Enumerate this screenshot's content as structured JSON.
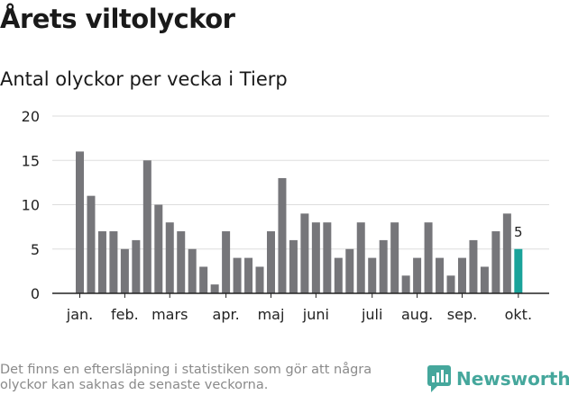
{
  "title": "Årets viltolyckor",
  "subtitle": "Antal olyckor per vecka i Tierp",
  "footnote": "Det finns en eftersläpning i statistiken som gör att några olyckor kan saknas de senaste veckorna.",
  "brand": "Newsworthy",
  "colors": {
    "bar": "#76767a",
    "highlight": "#1aa39a",
    "grid": "#dddddd",
    "axis": "#222222",
    "brand": "#45a79c"
  },
  "chart_data": {
    "type": "bar",
    "title": "Antal olyckor per vecka i Tierp",
    "xlabel": "",
    "ylabel": "",
    "ylim": [
      0,
      20
    ],
    "yticks": [
      0,
      5,
      10,
      15,
      20
    ],
    "grid": true,
    "weeks": [
      1,
      2,
      3,
      4,
      5,
      6,
      7,
      8,
      9,
      10,
      11,
      12,
      13,
      14,
      15,
      16,
      17,
      18,
      19,
      20,
      21,
      22,
      23,
      24,
      25,
      26,
      27,
      28,
      29,
      30,
      31,
      32,
      33,
      34,
      35,
      36,
      37,
      38,
      39,
      40
    ],
    "values": [
      16,
      11,
      7,
      7,
      5,
      6,
      15,
      10,
      8,
      7,
      5,
      3,
      1,
      7,
      4,
      4,
      3,
      7,
      13,
      6,
      9,
      8,
      8,
      4,
      5,
      8,
      4,
      6,
      8,
      2,
      4,
      8,
      4,
      2,
      4,
      6,
      3,
      7,
      9,
      5
    ],
    "highlight_index": 39,
    "highlight_label": "5",
    "month_labels": [
      {
        "label": "jan.",
        "week": 1
      },
      {
        "label": "feb.",
        "week": 5
      },
      {
        "label": "mars",
        "week": 9
      },
      {
        "label": "apr.",
        "week": 14
      },
      {
        "label": "maj",
        "week": 18
      },
      {
        "label": "juni",
        "week": 22
      },
      {
        "label": "juli",
        "week": 27
      },
      {
        "label": "aug.",
        "week": 31
      },
      {
        "label": "sep.",
        "week": 35
      },
      {
        "label": "okt.",
        "week": 40
      }
    ]
  }
}
